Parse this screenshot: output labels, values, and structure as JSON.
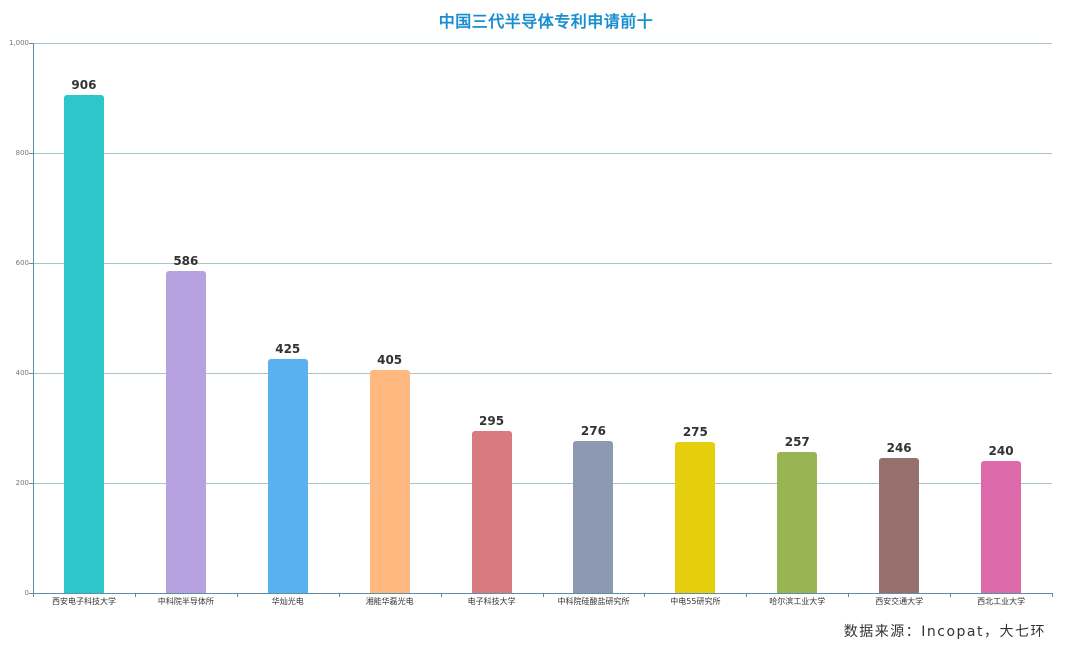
{
  "chart_data": {
    "type": "bar",
    "title": "中国三代半导体专利申请前十",
    "xlabel": "",
    "ylabel": "",
    "ylim": [
      0,
      1000
    ],
    "yticks": [
      0,
      200,
      400,
      600,
      800,
      1000
    ],
    "ytick_labels": [
      "0",
      "200",
      "400",
      "600",
      "800",
      "1,000"
    ],
    "grid": true,
    "legend": null,
    "categories": [
      "西安电子科技大学",
      "中科院半导体所",
      "华灿光电",
      "湘能华磊光电",
      "电子科技大学",
      "中科院硅酸盐研究所",
      "中电55研究所",
      "哈尔滨工业大学",
      "西安交通大学",
      "西北工业大学"
    ],
    "values": [
      906,
      586,
      425,
      405,
      295,
      276,
      275,
      257,
      246,
      240
    ],
    "colors": [
      "#2ec7c9",
      "#b6a2de",
      "#5ab1ef",
      "#ffb980",
      "#d87a80",
      "#8d98b3",
      "#e5cf0d",
      "#97b552",
      "#95706d",
      "#dc69aa"
    ],
    "value_labels": [
      "906",
      "586",
      "425",
      "405",
      "295",
      "276",
      "275",
      "257",
      "246",
      "240"
    ]
  },
  "footer": {
    "source": "数据来源：Incopat，大七环"
  }
}
